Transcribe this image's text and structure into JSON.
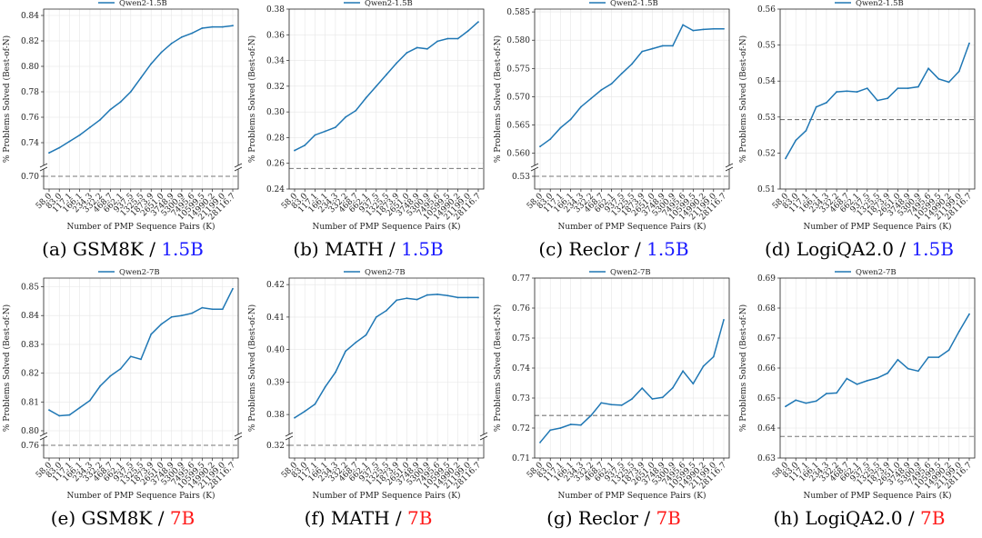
{
  "chart_data": [
    {
      "type": "line",
      "caption": {
        "text": "(a) GSM8K / ",
        "model": "1.5B",
        "color": "#1a1aff"
      },
      "legend": "Qwen2-1.5B",
      "xlabel": "Number of PMP Sequence Pairs (K)",
      "ylabel": "% Problems Solved (Best-of-N)",
      "categories": [
        "58.0",
        "83.0",
        "117.1",
        "166.1",
        "234.3",
        "332.2",
        "468.7",
        "662.1",
        "937.5",
        "1325.5",
        "1873.9",
        "2651.0",
        "3748.9",
        "5300.9",
        "7495.6",
        "10599.5",
        "14990.2",
        "21199.0",
        "28116.7"
      ],
      "series": [
        {
          "name": "Qwen2-1.5B",
          "values": [
            0.732,
            0.736,
            0.741,
            0.746,
            0.752,
            0.758,
            0.766,
            0.772,
            0.78,
            0.791,
            0.802,
            0.811,
            0.818,
            0.823,
            0.826,
            0.83,
            0.831,
            0.831,
            0.832
          ]
        }
      ],
      "baseline": 0.7,
      "ylim": [
        0.725,
        0.845
      ],
      "yticks": [
        0.74,
        0.76,
        0.78,
        0.8,
        0.82,
        0.84
      ],
      "ytick_labels": [
        "0.74",
        "0.76",
        "0.78",
        "0.80",
        "0.82",
        "0.84"
      ],
      "broken_axis_tick": "0.70"
    },
    {
      "type": "line",
      "caption": {
        "text": "(b) MATH / ",
        "model": "1.5B",
        "color": "#1a1aff"
      },
      "legend": "Qwen2-1.5B",
      "xlabel": "Number of PMP Sequence Pairs (K)",
      "ylabel": "% Problems Solved (Best-of-N)",
      "categories": [
        "58.0",
        "83.0",
        "117.1",
        "166.1",
        "234.3",
        "332.2",
        "468.7",
        "662.1",
        "937.5",
        "1325.5",
        "1873.9",
        "2651.0",
        "3748.9",
        "5300.9",
        "7495.6",
        "10599.5",
        "14990.2",
        "21199.0",
        "28116.7"
      ],
      "series": [
        {
          "name": "Qwen2-1.5B",
          "values": [
            0.27,
            0.274,
            0.282,
            0.285,
            0.288,
            0.296,
            0.301,
            0.311,
            0.32,
            0.329,
            0.338,
            0.346,
            0.35,
            0.349,
            0.355,
            0.357,
            0.357,
            0.363,
            0.37
          ]
        }
      ],
      "baseline": 0.256,
      "ylim": [
        0.24,
        0.38
      ],
      "yticks": [
        0.24,
        0.26,
        0.28,
        0.3,
        0.32,
        0.34,
        0.36,
        0.38
      ],
      "ytick_labels": [
        "0.24",
        "0.26",
        "0.28",
        "0.30",
        "0.32",
        "0.34",
        "0.36",
        "0.38"
      ]
    },
    {
      "type": "line",
      "caption": {
        "text": "(c) Reclor / ",
        "model": "1.5B",
        "color": "#1a1aff"
      },
      "legend": "Qwen2-1.5B",
      "xlabel": "Number of PMP Sequence Pairs (K)",
      "ylabel": "% Problems Solved (Best-of-N)",
      "categories": [
        "58.0",
        "83.0",
        "117.1",
        "166.1",
        "234.3",
        "332.2",
        "468.7",
        "662.1",
        "937.5",
        "1325.5",
        "1873.9",
        "2651.0",
        "3748.9",
        "5300.9",
        "7495.6",
        "10599.5",
        "14990.2",
        "21199.0",
        "28116.7"
      ],
      "series": [
        {
          "name": "Qwen2-1.5B",
          "values": [
            0.5612,
            0.5625,
            0.5645,
            0.566,
            0.5682,
            0.5697,
            0.5712,
            0.5723,
            0.5741,
            0.5758,
            0.578,
            0.5785,
            0.579,
            0.579,
            0.5827,
            0.5817,
            0.5819,
            0.582,
            0.582
          ]
        }
      ],
      "baseline": 0.53,
      "ylim": [
        0.5585,
        0.5855
      ],
      "yticks": [
        0.56,
        0.565,
        0.57,
        0.575,
        0.58,
        0.585
      ],
      "ytick_labels": [
        "0.560",
        "0.565",
        "0.570",
        "0.575",
        "0.580",
        "0.585"
      ],
      "broken_axis_tick": "0.53"
    },
    {
      "type": "line",
      "caption": {
        "text": "(d) LogiQA2.0 / ",
        "model": "1.5B",
        "color": "#1a1aff"
      },
      "legend": "Qwen2-1.5B",
      "xlabel": "Number of PMP Sequence Pairs (K)",
      "ylabel": "% Problems Solved (Best-of-N)",
      "categories": [
        "58.0",
        "83.0",
        "117.1",
        "166.1",
        "234.3",
        "332.2",
        "468.7",
        "662.1",
        "937.5",
        "1325.5",
        "1873.9",
        "2651.0",
        "3748.9",
        "5300.9",
        "7495.6",
        "10599.5",
        "14990.2",
        "21199.0",
        "28116.7"
      ],
      "series": [
        {
          "name": "Qwen2-1.5B",
          "values": [
            0.5185,
            0.5235,
            0.5262,
            0.5328,
            0.534,
            0.537,
            0.5372,
            0.537,
            0.538,
            0.5346,
            0.5352,
            0.538,
            0.538,
            0.5384,
            0.5435,
            0.5406,
            0.5397,
            0.5427,
            0.5505
          ]
        }
      ],
      "baseline": 0.5293,
      "ylim": [
        0.51,
        0.56
      ],
      "yticks": [
        0.51,
        0.52,
        0.53,
        0.54,
        0.55,
        0.56
      ],
      "ytick_labels": [
        "0.51",
        "0.52",
        "0.53",
        "0.54",
        "0.55",
        "0.56"
      ]
    },
    {
      "type": "line",
      "caption": {
        "text": "(e) GSM8K / ",
        "model": "7B",
        "color": "#ff1a1a"
      },
      "legend": "Qwen2-7B",
      "xlabel": "Number of PMP Sequence Pairs (K)",
      "ylabel": "% Problems Solved (Best-of-N)",
      "categories": [
        "58.0",
        "83.0",
        "117.1",
        "166.1",
        "234.3",
        "332.2",
        "468.7",
        "662.1",
        "937.5",
        "1325.5",
        "1873.9",
        "2651.0",
        "3748.9",
        "5300.9",
        "7495.6",
        "10599.5",
        "14990.2",
        "21199.0",
        "28116.7"
      ],
      "series": [
        {
          "name": "Qwen2-7B",
          "values": [
            0.8072,
            0.8052,
            0.8055,
            0.808,
            0.8105,
            0.8155,
            0.819,
            0.8215,
            0.8258,
            0.8248,
            0.8335,
            0.837,
            0.8395,
            0.84,
            0.8408,
            0.8427,
            0.8422,
            0.8422,
            0.8493
          ]
        }
      ],
      "baseline": 0.76,
      "ylim": [
        0.8,
        0.853
      ],
      "yticks": [
        0.8,
        0.81,
        0.82,
        0.83,
        0.84,
        0.85
      ],
      "ytick_labels": [
        "0.80",
        "0.81",
        "0.82",
        "0.83",
        "0.84",
        "0.85"
      ],
      "broken_axis_tick": "0.76"
    },
    {
      "type": "line",
      "caption": {
        "text": "(f) MATH / ",
        "model": "7B",
        "color": "#ff1a1a"
      },
      "legend": "Qwen2-7B",
      "xlabel": "Number of PMP Sequence Pairs (K)",
      "ylabel": "% Problems Solved (Best-of-N)",
      "categories": [
        "58.0",
        "83.0",
        "117.1",
        "166.1",
        "234.3",
        "332.2",
        "468.7",
        "662.1",
        "937.5",
        "1325.5",
        "1873.9",
        "2651.0",
        "3748.9",
        "5300.9",
        "7495.6",
        "10599.5",
        "14990.2",
        "21199.0",
        "28116.7"
      ],
      "series": [
        {
          "name": "Qwen2-7B",
          "values": [
            0.379,
            0.381,
            0.3832,
            0.3885,
            0.393,
            0.3995,
            0.4022,
            0.4045,
            0.41,
            0.412,
            0.4152,
            0.4158,
            0.4154,
            0.4168,
            0.417,
            0.4166,
            0.416,
            0.416,
            0.416
          ]
        }
      ],
      "baseline": 0.32,
      "ylim": [
        0.375,
        0.422
      ],
      "yticks": [
        0.38,
        0.39,
        0.4,
        0.41,
        0.42
      ],
      "ytick_labels": [
        "0.38",
        "0.39",
        "0.40",
        "0.41",
        "0.42"
      ],
      "broken_axis_tick": "0.32"
    },
    {
      "type": "line",
      "caption": {
        "text": "(g) Reclor / ",
        "model": "7B",
        "color": "#ff1a1a"
      },
      "legend": "Qwen2-7B",
      "xlabel": "Number of PMP Sequence Pairs (K)",
      "ylabel": "% Problems Solved (Best-of-N)",
      "categories": [
        "58.0",
        "83.0",
        "117.1",
        "166.1",
        "234.3",
        "332.2",
        "468.7",
        "662.1",
        "937.5",
        "1325.5",
        "1873.9",
        "2651.0",
        "3748.9",
        "5300.9",
        "7495.6",
        "10599.5",
        "14990.2",
        "21199.0",
        "28116.7"
      ],
      "series": [
        {
          "name": "Qwen2-7B",
          "values": [
            0.7152,
            0.7193,
            0.72,
            0.7212,
            0.721,
            0.7242,
            0.7284,
            0.7278,
            0.7276,
            0.7297,
            0.7333,
            0.7297,
            0.7302,
            0.7334,
            0.739,
            0.7348,
            0.7406,
            0.7438,
            0.7561
          ]
        }
      ],
      "baseline": 0.7242,
      "ylim": [
        0.71,
        0.77
      ],
      "yticks": [
        0.71,
        0.72,
        0.73,
        0.74,
        0.75,
        0.76,
        0.77
      ],
      "ytick_labels": [
        "0.71",
        "0.72",
        "0.73",
        "0.74",
        "0.75",
        "0.76",
        "0.77"
      ]
    },
    {
      "type": "line",
      "caption": {
        "text": "(h) LogiQA2.0 / ",
        "model": "7B",
        "color": "#ff1a1a"
      },
      "legend": "Qwen2-7B",
      "xlabel": "Number of PMP Sequence Pairs (K)",
      "ylabel": "% Problems Solved (Best-of-N)",
      "categories": [
        "58.0",
        "83.0",
        "117.1",
        "166.1",
        "234.3",
        "332.2",
        "468.7",
        "662.1",
        "937.5",
        "1325.5",
        "1873.9",
        "2651.0",
        "3748.9",
        "5300.9",
        "7495.6",
        "10599.5",
        "14990.2",
        "21199.0",
        "28116.7"
      ],
      "series": [
        {
          "name": "Qwen2-7B",
          "values": [
            0.6472,
            0.6493,
            0.6483,
            0.649,
            0.6515,
            0.6517,
            0.6565,
            0.6546,
            0.6558,
            0.6567,
            0.6583,
            0.6628,
            0.6598,
            0.659,
            0.6636,
            0.6636,
            0.666,
            0.6722,
            0.678
          ]
        }
      ],
      "baseline": 0.6372,
      "ylim": [
        0.63,
        0.69
      ],
      "yticks": [
        0.63,
        0.64,
        0.65,
        0.66,
        0.67,
        0.68,
        0.69
      ],
      "ytick_labels": [
        "0.63",
        "0.64",
        "0.65",
        "0.66",
        "0.67",
        "0.68",
        "0.69"
      ]
    }
  ],
  "style": {
    "line_color": "#1f77b4",
    "baseline_color": "#777777",
    "grid_color": "#e6e6e6",
    "axis_color": "#222222"
  }
}
